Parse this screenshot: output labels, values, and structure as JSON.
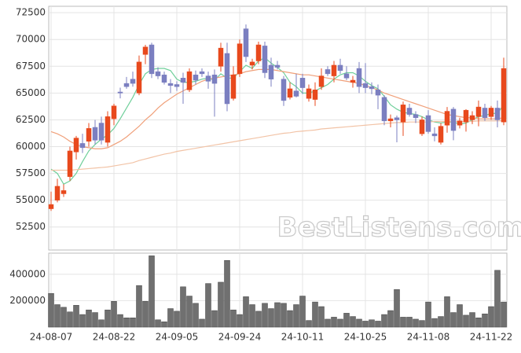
{
  "chart_data": [
    {
      "type": "candlestick",
      "ylim": [
        50350,
        73100
      ],
      "yticks": [
        52500,
        55000,
        57500,
        60000,
        62500,
        65000,
        67500,
        70000,
        72500
      ],
      "grid": true,
      "up_color": "#e8491d",
      "down_color": "#7b7fc0",
      "watermark": "BestListens.com",
      "open": [
        54200,
        55000,
        55600,
        57200,
        59500,
        60300,
        60500,
        61800,
        62200,
        60400,
        62600,
        65100,
        65900,
        66300,
        65000,
        68600,
        69500,
        67000,
        66700,
        65900,
        65800,
        66400,
        65300,
        66700,
        67000,
        66600,
        66700,
        67500,
        68700,
        64500,
        66800,
        71000,
        67600,
        68000,
        69400,
        67600,
        67600,
        66300,
        64600,
        65200,
        66400,
        64500,
        64400,
        65600,
        67200,
        66600,
        67600,
        66800,
        66000,
        67300,
        65900,
        65600,
        65300,
        64600,
        62400,
        62700,
        62300,
        63600,
        63000,
        61200,
        62900,
        61200,
        60400,
        62000,
        63500,
        62000,
        62300,
        62500,
        62800,
        63600,
        62800,
        63600,
        62300
      ],
      "high": [
        55800,
        57000,
        56500,
        60000,
        61000,
        61200,
        62200,
        62500,
        62800,
        63300,
        64000,
        65500,
        66500,
        67000,
        68500,
        69500,
        69700,
        67400,
        67000,
        66300,
        66100,
        66900,
        67300,
        67100,
        67300,
        67000,
        67200,
        69700,
        69700,
        67500,
        70000,
        71400,
        68200,
        69800,
        69800,
        68300,
        68000,
        66600,
        66000,
        66800,
        66800,
        65800,
        66000,
        67300,
        67500,
        68000,
        68200,
        67500,
        66600,
        67900,
        67800,
        66000,
        65800,
        64800,
        63000,
        62900,
        64200,
        64000,
        63300,
        62800,
        63400,
        61800,
        62200,
        63700,
        63700,
        62700,
        63500,
        63300,
        64300,
        64000,
        63800,
        64300,
        68300
      ],
      "low": [
        54000,
        54800,
        55300,
        56800,
        58800,
        59400,
        60000,
        60200,
        60200,
        60000,
        62000,
        64500,
        65400,
        65600,
        64800,
        67700,
        66400,
        66300,
        65800,
        65000,
        65200,
        64000,
        65100,
        65800,
        66500,
        65400,
        62800,
        67000,
        63300,
        64300,
        66500,
        67900,
        67200,
        67700,
        66400,
        65600,
        67200,
        63800,
        64400,
        64600,
        64900,
        64200,
        63800,
        65300,
        66600,
        66000,
        66800,
        66200,
        65500,
        65000,
        65000,
        64900,
        63500,
        62000,
        61800,
        60400,
        61000,
        62800,
        62200,
        61000,
        61200,
        60500,
        60200,
        61300,
        60600,
        61700,
        61400,
        62100,
        61900,
        62400,
        62500,
        61800,
        62000
      ],
      "close": [
        54600,
        56300,
        55900,
        59600,
        60800,
        59900,
        61700,
        60600,
        60600,
        62800,
        63800,
        65000,
        65600,
        65900,
        67900,
        69300,
        66800,
        66600,
        66000,
        65700,
        65600,
        66000,
        67000,
        66200,
        66800,
        66100,
        65900,
        69200,
        64000,
        66700,
        69600,
        68400,
        67900,
        69500,
        66900,
        66300,
        67400,
        64300,
        65400,
        64700,
        65500,
        65400,
        65300,
        66600,
        66800,
        67600,
        67100,
        66400,
        66200,
        65600,
        65500,
        65400,
        64800,
        62400,
        62600,
        62500,
        63900,
        63000,
        62700,
        62500,
        61400,
        61000,
        61900,
        63300,
        61500,
        62400,
        63400,
        62900,
        63700,
        62700,
        63600,
        62500,
        67300
      ],
      "lines": [
        {
          "color": "#6fcf9a",
          "values": [
            57900,
            57500,
            56500,
            56800,
            57500,
            58600,
            59600,
            60200,
            60700,
            61100,
            61700,
            62600,
            63600,
            64600,
            65800,
            66800,
            67200,
            67300,
            67300,
            67100,
            66300,
            66000,
            66000,
            66100,
            66300,
            66400,
            66200,
            66800,
            66400,
            66400,
            67000,
            67600,
            67300,
            68000,
            68300,
            67800,
            67400,
            66900,
            66000,
            65600,
            65000,
            65000,
            65200,
            65500,
            65800,
            66300,
            66700,
            66900,
            66900,
            66600,
            66100,
            65700,
            65400,
            64700,
            63900,
            63500,
            63200,
            63100,
            63000,
            62800,
            62500,
            62300,
            62200,
            62300,
            62300,
            62100,
            62200,
            62500,
            62800,
            62900,
            63100,
            63100,
            63900
          ]
        },
        {
          "color": "#f0a07a",
          "values": [
            61400,
            61200,
            60900,
            60500,
            60200,
            60000,
            59900,
            59800,
            59800,
            59900,
            60200,
            60500,
            60900,
            61400,
            61900,
            62500,
            63000,
            63600,
            64100,
            64500,
            64900,
            65200,
            65500,
            65800,
            66100,
            66300,
            66400,
            66500,
            66600,
            66700,
            66800,
            67000,
            67100,
            67200,
            67200,
            67200,
            67100,
            67000,
            66900,
            66800,
            66700,
            66700,
            66600,
            66500,
            66400,
            66300,
            66200,
            66100,
            66000,
            65900,
            65700,
            65500,
            65300,
            65000,
            64800,
            64600,
            64400,
            64200,
            64000,
            63800,
            63600,
            63400,
            63200,
            63000,
            62900,
            62800,
            62700,
            62700,
            62600,
            62600,
            62600,
            62600,
            62700
          ]
        },
        {
          "color": "#f2c3a6",
          "values": [
            57800,
            57800,
            57800,
            57800,
            57850,
            57900,
            57950,
            58000,
            58050,
            58100,
            58200,
            58300,
            58400,
            58500,
            58700,
            58850,
            59000,
            59150,
            59300,
            59400,
            59550,
            59650,
            59750,
            59850,
            59950,
            60050,
            60150,
            60250,
            60350,
            60450,
            60550,
            60650,
            60750,
            60850,
            60950,
            61050,
            61150,
            61250,
            61300,
            61400,
            61450,
            61500,
            61550,
            61650,
            61700,
            61750,
            61800,
            61850,
            61900,
            61950,
            62000,
            62050,
            62100,
            62150,
            62200,
            62250,
            62250,
            62300,
            62300,
            62300,
            62300,
            62350,
            62350,
            62350,
            62350,
            62350,
            62350,
            62350,
            62400,
            62400,
            62400,
            62400,
            62400
          ]
        }
      ]
    },
    {
      "type": "bar",
      "color": "#707070",
      "ylim": [
        0,
        560000
      ],
      "yticks": [
        200000,
        400000
      ],
      "grid": true,
      "categories": [
        "24-08-07",
        null,
        null,
        null,
        null,
        null,
        null,
        null,
        null,
        null,
        "24-08-22",
        null,
        null,
        null,
        null,
        null,
        null,
        null,
        null,
        null,
        "24-09-05",
        null,
        null,
        null,
        null,
        null,
        null,
        null,
        null,
        null,
        "24-09-24",
        null,
        null,
        null,
        null,
        null,
        null,
        null,
        null,
        null,
        "24-10-11",
        null,
        null,
        null,
        null,
        null,
        null,
        null,
        null,
        null,
        "24-10-25",
        null,
        null,
        null,
        null,
        null,
        null,
        null,
        null,
        null,
        "24-11-08",
        null,
        null,
        null,
        null,
        null,
        null,
        null,
        null,
        null,
        "24-11-22",
        null,
        null
      ],
      "values": [
        255000,
        170000,
        150000,
        115000,
        165000,
        95000,
        130000,
        110000,
        55000,
        130000,
        195000,
        95000,
        70000,
        70000,
        315000,
        195000,
        540000,
        55000,
        40000,
        140000,
        120000,
        305000,
        235000,
        180000,
        60000,
        330000,
        125000,
        340000,
        505000,
        130000,
        95000,
        230000,
        170000,
        120000,
        180000,
        140000,
        185000,
        180000,
        125000,
        170000,
        235000,
        50000,
        190000,
        155000,
        60000,
        75000,
        60000,
        105000,
        80000,
        60000,
        45000,
        55000,
        45000,
        95000,
        125000,
        285000,
        75000,
        75000,
        60000,
        50000,
        190000,
        65000,
        80000,
        230000,
        110000,
        170000,
        90000,
        110000,
        70000,
        100000,
        155000,
        430000,
        190000
      ]
    }
  ]
}
